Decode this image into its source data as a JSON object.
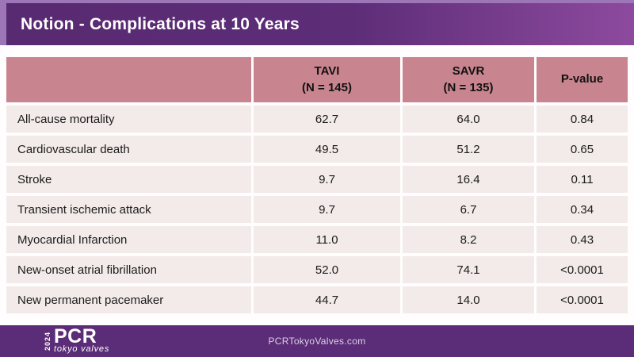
{
  "slide": {
    "title": "Notion - Complications at 10 Years"
  },
  "table": {
    "header": {
      "col_label": "",
      "tavi_line1": "TAVI",
      "tavi_line2": "(N = 145)",
      "savr_line1": "SAVR",
      "savr_line2": "(N = 135)",
      "pvalue": "P-value"
    },
    "rows": [
      {
        "label": "All-cause mortality",
        "tavi": "62.7",
        "savr": "64.0",
        "p": "0.84"
      },
      {
        "label": "Cardiovascular death",
        "tavi": "49.5",
        "savr": "51.2",
        "p": "0.65"
      },
      {
        "label": "Stroke",
        "tavi": "9.7",
        "savr": "16.4",
        "p": "0.11"
      },
      {
        "label": "Transient ischemic attack",
        "tavi": "9.7",
        "savr": "6.7",
        "p": "0.34"
      },
      {
        "label": "Myocardial Infarction",
        "tavi": "11.0",
        "savr": "8.2",
        "p": "0.43"
      },
      {
        "label": "New-onset atrial fibrillation",
        "tavi": "52.0",
        "savr": "74.1",
        "p": "<0.0001"
      },
      {
        "label": "New permanent pacemaker",
        "tavi": "44.7",
        "savr": "14.0",
        "p": "<0.0001"
      }
    ]
  },
  "footer": {
    "logo_year": "2024",
    "logo_main": "PCR",
    "logo_sub": "tokyo valves",
    "url": "PCRTokyoValves.com"
  },
  "colors": {
    "banner_dark": "#582a71",
    "banner_light": "#8d4a9e",
    "frame_light": "#9d76b8",
    "header_pink": "#c9858f",
    "row_pink": "#f3eaea",
    "footer_purple": "#5b2c77",
    "text": "#1b1b1b"
  }
}
